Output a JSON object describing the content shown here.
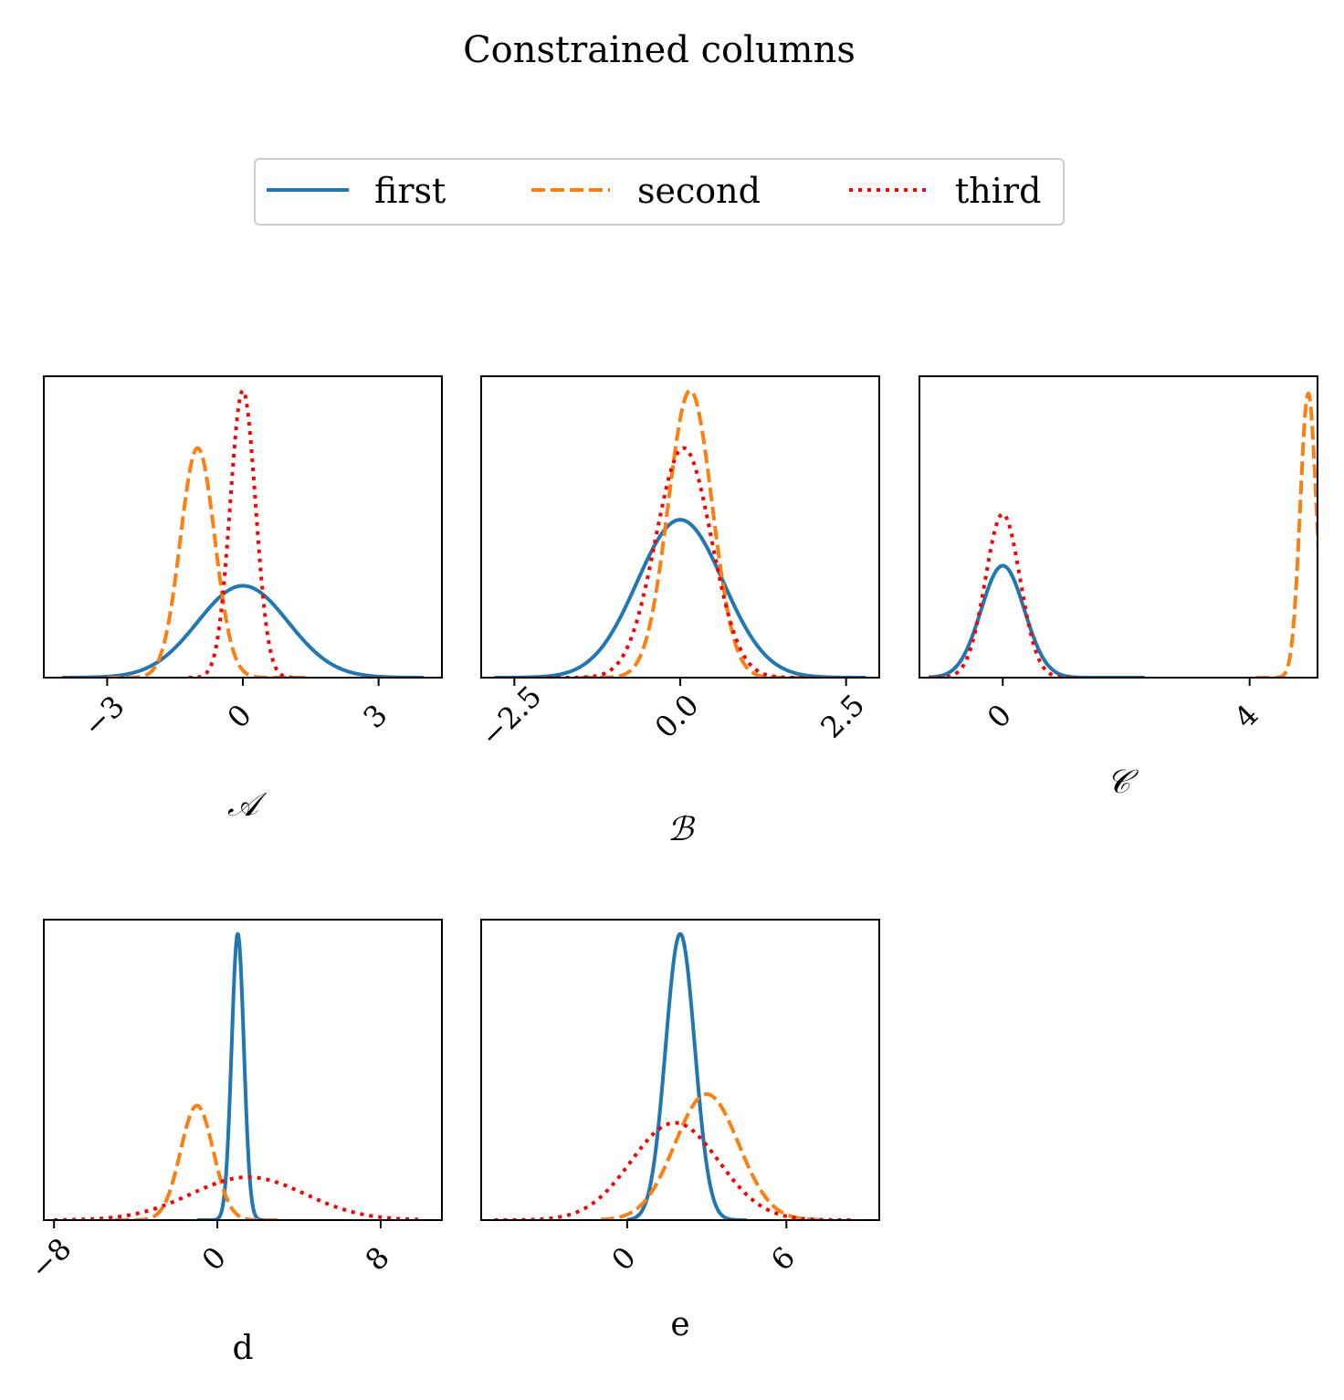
{
  "figure": {
    "title": "Constrained columns"
  },
  "legend": {
    "placement": "top-center",
    "entries": [
      {
        "name": "first",
        "color": "#1f77b4",
        "dash": "solid"
      },
      {
        "name": "second",
        "color": "#ff7f0e",
        "dash": "dashed"
      },
      {
        "name": "third",
        "color": "#ff0000",
        "dash": "dotted"
      }
    ]
  },
  "chart_data": [
    {
      "type": "line",
      "xlabel": "𝒜",
      "xlim": [
        -4.4,
        4.4
      ],
      "ylim": [
        0,
        1.05
      ],
      "xticks": [
        -3,
        0,
        3
      ],
      "xtick_labels": [
        "−3",
        "0",
        "3"
      ],
      "grid": false,
      "series": [
        {
          "name": "first",
          "kind": "gaussian",
          "mean": 0.0,
          "sd": 1.0,
          "peak": 0.32,
          "x_range": [
            -4.0,
            4.0
          ]
        },
        {
          "name": "second",
          "kind": "gaussian",
          "mean": -1.0,
          "sd": 0.38,
          "peak": 0.8,
          "x_range": [
            -3.0,
            1.5
          ]
        },
        {
          "name": "third",
          "kind": "gaussian",
          "mean": 0.0,
          "sd": 0.28,
          "peak": 1.0,
          "x_range": [
            -1.2,
            1.2
          ]
        }
      ]
    },
    {
      "type": "line",
      "xlabel": "ℬ",
      "xlim": [
        -3.0,
        3.0
      ],
      "ylim": [
        0,
        1.05
      ],
      "xticks": [
        -2.5,
        0.0,
        2.5
      ],
      "xtick_labels": [
        "−2.5",
        "0.0",
        "2.5"
      ],
      "grid": false,
      "series": [
        {
          "name": "first",
          "kind": "gaussian",
          "mean": 0.0,
          "sd": 0.65,
          "peak": 0.55,
          "x_range": [
            -2.8,
            2.8
          ]
        },
        {
          "name": "second",
          "kind": "gaussian",
          "mean": 0.15,
          "sd": 0.33,
          "peak": 1.0,
          "x_range": [
            -1.5,
            1.8
          ]
        },
        {
          "name": "third",
          "kind": "gaussian",
          "mean": 0.05,
          "sd": 0.42,
          "peak": 0.8,
          "x_range": [
            -2.0,
            2.0
          ]
        }
      ]
    },
    {
      "type": "line",
      "xlabel": "𝒞",
      "xlim": [
        -1.35,
        5.1
      ],
      "ylim": [
        0,
        1.05
      ],
      "xticks": [
        0,
        4
      ],
      "xtick_labels": [
        "0",
        "4"
      ],
      "grid": false,
      "series": [
        {
          "name": "first",
          "kind": "gaussian",
          "mean": 0.0,
          "sd": 0.35,
          "peak": 0.39,
          "x_range": [
            -1.2,
            2.3
          ]
        },
        {
          "name": "second",
          "kind": "gaussian",
          "mean": 4.95,
          "sd": 0.13,
          "peak": 0.99,
          "x_range": [
            4.1,
            5.7
          ]
        },
        {
          "name": "third",
          "kind": "gaussian",
          "mean": 0.0,
          "sd": 0.28,
          "peak": 0.57,
          "x_range": [
            -1.2,
            1.2
          ]
        }
      ]
    },
    {
      "type": "line",
      "xlabel": "d",
      "xlim": [
        -8.5,
        11.0
      ],
      "ylim": [
        0,
        1.05
      ],
      "xticks": [
        -8,
        0,
        8
      ],
      "xtick_labels": [
        "−8",
        "0",
        "8"
      ],
      "grid": false,
      "series": [
        {
          "name": "first",
          "kind": "gaussian",
          "mean": 1.0,
          "sd": 0.3,
          "peak": 1.0,
          "x_range": [
            -1.0,
            2.5
          ]
        },
        {
          "name": "second",
          "kind": "gaussian",
          "mean": -1.0,
          "sd": 0.8,
          "peak": 0.4,
          "x_range": [
            -5.0,
            3.0
          ]
        },
        {
          "name": "third",
          "kind": "gaussian",
          "mean": 1.5,
          "sd": 2.8,
          "peak": 0.15,
          "x_range": [
            -8.0,
            10.0
          ]
        }
      ]
    },
    {
      "type": "line",
      "xlabel": "e",
      "xlim": [
        -5.5,
        9.5
      ],
      "ylim": [
        0,
        1.05
      ],
      "xticks": [
        0,
        6
      ],
      "xtick_labels": [
        "0",
        "6"
      ],
      "grid": false,
      "series": [
        {
          "name": "first",
          "kind": "gaussian",
          "mean": 2.0,
          "sd": 0.55,
          "peak": 1.0,
          "x_range": [
            0.0,
            4.5
          ]
        },
        {
          "name": "second",
          "kind": "gaussian",
          "mean": 3.0,
          "sd": 1.2,
          "peak": 0.44,
          "x_range": [
            -1.0,
            7.5
          ]
        },
        {
          "name": "third",
          "kind": "gaussian",
          "mean": 1.8,
          "sd": 1.65,
          "peak": 0.34,
          "x_range": [
            -5.0,
            8.5
          ]
        }
      ]
    }
  ]
}
